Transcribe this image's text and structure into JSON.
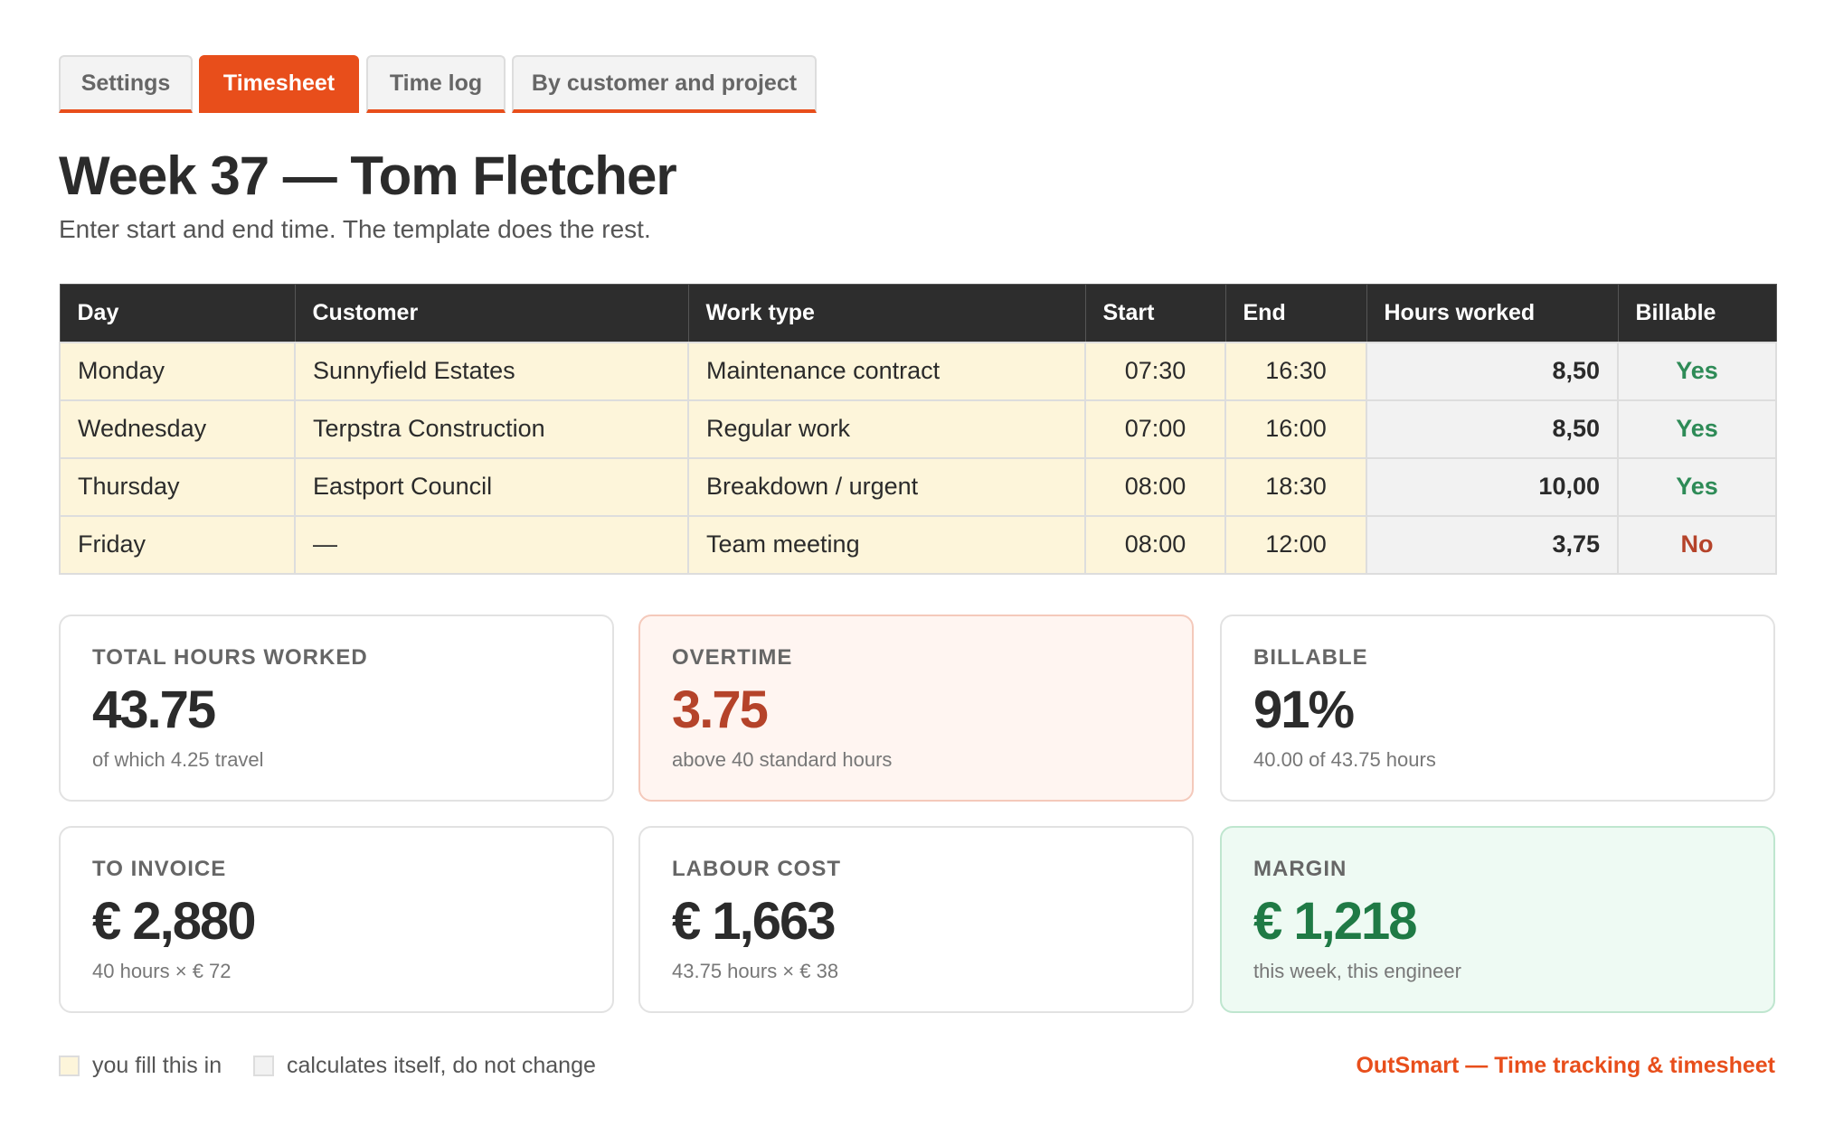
{
  "tabs": {
    "items": [
      "Settings",
      "Timesheet",
      "Time log",
      "By customer and project"
    ],
    "active": 1
  },
  "header": {
    "title": "Week 37 — Tom Fletcher",
    "subtitle": "Enter start and end time. The template does the rest."
  },
  "table": {
    "columns": [
      "Day",
      "Customer",
      "Work type",
      "Start",
      "End",
      "Hours worked",
      "Billable"
    ],
    "rows": [
      {
        "day": "Monday",
        "customer": "Sunnyfield Estates",
        "work_type": "Maintenance contract",
        "start": "07:30",
        "end": "16:30",
        "hours": "8,50",
        "billable": "Yes",
        "billable_color": "#2e8b57"
      },
      {
        "day": "Wednesday",
        "customer": "Terpstra Construction",
        "work_type": "Regular work",
        "start": "07:00",
        "end": "16:00",
        "hours": "8,50",
        "billable": "Yes",
        "billable_color": "#2e8b57"
      },
      {
        "day": "Thursday",
        "customer": "Eastport Council",
        "work_type": "Breakdown / urgent",
        "start": "08:00",
        "end": "18:30",
        "hours": "10,00",
        "billable": "Yes",
        "billable_color": "#2e8b57"
      },
      {
        "day": "Friday",
        "customer": "—",
        "work_type": "Team meeting",
        "start": "08:00",
        "end": "12:00",
        "hours": "3,75",
        "billable": "No",
        "billable_color": "#b5432a"
      }
    ]
  },
  "cards": [
    {
      "label": "Total hours worked",
      "value": "43.75",
      "note": "of which 4.25 travel"
    },
    {
      "label": "Overtime",
      "value": "3.75",
      "note": "above 40 standard hours",
      "variant": "warn"
    },
    {
      "label": "Billable",
      "value": "91%",
      "note": "40.00 of 43.75 hours"
    },
    {
      "label": "To invoice",
      "value": "€ 2,880",
      "note": "40 hours × € 72"
    },
    {
      "label": "Labour cost",
      "value": "€ 1,663",
      "note": "43.75 hours × € 38"
    },
    {
      "label": "Margin",
      "value": "€ 1,218",
      "note": "this week, this engineer",
      "variant": "good"
    }
  ],
  "legend": {
    "input": "you fill this in",
    "calculated": "calculates itself, do not change"
  },
  "footer": {
    "brand": "OutSmart — Time tracking & timesheet"
  }
}
